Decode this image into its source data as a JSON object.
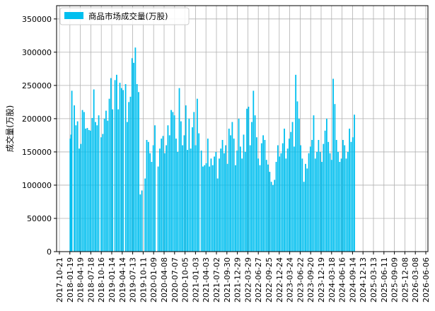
{
  "chart_data": {
    "type": "bar",
    "series": [
      {
        "name": "商品市场成交量(万股)",
        "color": "#00bfef",
        "points": [
          [
            "2018-01-22",
            170000
          ],
          [
            "2018-01-29",
            176000
          ],
          [
            "2018-02-05",
            242000
          ],
          [
            "2018-02-26",
            220000
          ],
          [
            "2018-03-12",
            190000
          ],
          [
            "2018-03-26",
            196000
          ],
          [
            "2018-04-09",
            155000
          ],
          [
            "2018-04-23",
            162000
          ],
          [
            "2018-05-07",
            213000
          ],
          [
            "2018-05-21",
            210000
          ],
          [
            "2018-06-04",
            185000
          ],
          [
            "2018-06-18",
            186000
          ],
          [
            "2018-07-02",
            183000
          ],
          [
            "2018-07-16",
            182000
          ],
          [
            "2018-07-30",
            201000
          ],
          [
            "2018-08-13",
            244000
          ],
          [
            "2018-08-27",
            195000
          ],
          [
            "2018-09-10",
            190000
          ],
          [
            "2018-09-24",
            205000
          ],
          [
            "2018-10-15",
            172000
          ],
          [
            "2018-10-29",
            177000
          ],
          [
            "2018-11-12",
            200000
          ],
          [
            "2018-11-26",
            212000
          ],
          [
            "2018-12-10",
            197000
          ],
          [
            "2018-12-24",
            230000
          ],
          [
            "2019-01-07",
            261000
          ],
          [
            "2019-01-21",
            214000
          ],
          [
            "2019-02-11",
            258000
          ],
          [
            "2019-02-25",
            266000
          ],
          [
            "2019-03-11",
            214000
          ],
          [
            "2019-03-25",
            254000
          ],
          [
            "2019-04-08",
            246000
          ],
          [
            "2019-04-22",
            243000
          ],
          [
            "2019-05-13",
            252000
          ],
          [
            "2019-05-27",
            195000
          ],
          [
            "2019-06-10",
            225000
          ],
          [
            "2019-06-24",
            233000
          ],
          [
            "2019-07-08",
            291000
          ],
          [
            "2019-07-22",
            284000
          ],
          [
            "2019-08-05",
            307000
          ],
          [
            "2019-08-19",
            252000
          ],
          [
            "2019-09-02",
            240000
          ],
          [
            "2019-09-16",
            86000
          ],
          [
            "2019-09-30",
            92000
          ],
          [
            "2019-10-28",
            110000
          ],
          [
            "2019-11-11",
            168000
          ],
          [
            "2019-11-25",
            165000
          ],
          [
            "2019-12-09",
            148000
          ],
          [
            "2019-12-23",
            135000
          ],
          [
            "2020-01-06",
            160000
          ],
          [
            "2020-01-20",
            190000
          ],
          [
            "2020-02-17",
            128000
          ],
          [
            "2020-03-02",
            155000
          ],
          [
            "2020-03-16",
            170000
          ],
          [
            "2020-03-30",
            174000
          ],
          [
            "2020-04-13",
            148000
          ],
          [
            "2020-04-27",
            160000
          ],
          [
            "2020-05-11",
            190000
          ],
          [
            "2020-05-25",
            175000
          ],
          [
            "2020-06-08",
            213000
          ],
          [
            "2020-06-22",
            210000
          ],
          [
            "2020-07-06",
            205000
          ],
          [
            "2020-07-20",
            170000
          ],
          [
            "2020-08-03",
            150000
          ],
          [
            "2020-08-17",
            246000
          ],
          [
            "2020-08-31",
            196000
          ],
          [
            "2020-09-14",
            160000
          ],
          [
            "2020-09-28",
            175000
          ],
          [
            "2020-10-12",
            220000
          ],
          [
            "2020-10-26",
            153000
          ],
          [
            "2020-11-09",
            200000
          ],
          [
            "2020-11-23",
            155000
          ],
          [
            "2020-12-07",
            187000
          ],
          [
            "2020-12-21",
            210000
          ],
          [
            "2021-01-04",
            160000
          ],
          [
            "2021-01-18",
            230000
          ],
          [
            "2021-02-01",
            178000
          ],
          [
            "2021-02-22",
            152000
          ],
          [
            "2021-03-08",
            128000
          ],
          [
            "2021-03-22",
            130000
          ],
          [
            "2021-04-05",
            133000
          ],
          [
            "2021-04-19",
            170000
          ],
          [
            "2021-05-03",
            128000
          ],
          [
            "2021-05-17",
            140000
          ],
          [
            "2021-05-31",
            130000
          ],
          [
            "2021-06-14",
            143000
          ],
          [
            "2021-06-28",
            150000
          ],
          [
            "2021-07-12",
            110000
          ],
          [
            "2021-07-26",
            140000
          ],
          [
            "2021-08-09",
            155000
          ],
          [
            "2021-08-23",
            168000
          ],
          [
            "2021-09-06",
            148000
          ],
          [
            "2021-09-20",
            160000
          ],
          [
            "2021-10-04",
            132000
          ],
          [
            "2021-10-18",
            185000
          ],
          [
            "2021-11-01",
            175000
          ],
          [
            "2021-11-15",
            195000
          ],
          [
            "2021-11-29",
            170000
          ],
          [
            "2021-12-13",
            130000
          ],
          [
            "2021-12-27",
            152000
          ],
          [
            "2022-01-10",
            200000
          ],
          [
            "2022-01-24",
            158000
          ],
          [
            "2022-02-07",
            140000
          ],
          [
            "2022-02-21",
            176000
          ],
          [
            "2022-03-07",
            150000
          ],
          [
            "2022-03-21",
            215000
          ],
          [
            "2022-04-04",
            218000
          ],
          [
            "2022-04-18",
            160000
          ],
          [
            "2022-05-02",
            195000
          ],
          [
            "2022-05-16",
            242000
          ],
          [
            "2022-05-30",
            205000
          ],
          [
            "2022-06-13",
            172000
          ],
          [
            "2022-06-27",
            140000
          ],
          [
            "2022-07-11",
            130000
          ],
          [
            "2022-07-25",
            163000
          ],
          [
            "2022-08-08",
            175000
          ],
          [
            "2022-08-22",
            168000
          ],
          [
            "2022-09-05",
            138000
          ],
          [
            "2022-09-19",
            131000
          ],
          [
            "2022-10-03",
            120000
          ],
          [
            "2022-10-17",
            105000
          ],
          [
            "2022-10-31",
            100000
          ],
          [
            "2022-11-14",
            108000
          ],
          [
            "2022-11-28",
            135000
          ],
          [
            "2022-12-12",
            160000
          ],
          [
            "2022-12-26",
            143000
          ],
          [
            "2023-01-09",
            148000
          ],
          [
            "2023-01-23",
            163000
          ],
          [
            "2023-02-06",
            185000
          ],
          [
            "2023-02-20",
            140000
          ],
          [
            "2023-03-06",
            155000
          ],
          [
            "2023-03-20",
            170000
          ],
          [
            "2023-04-03",
            180000
          ],
          [
            "2023-04-17",
            195000
          ],
          [
            "2023-05-01",
            158000
          ],
          [
            "2023-05-15",
            266000
          ],
          [
            "2023-05-29",
            226000
          ],
          [
            "2023-06-12",
            200000
          ],
          [
            "2023-06-26",
            160000
          ],
          [
            "2023-07-10",
            140000
          ],
          [
            "2023-07-24",
            105000
          ],
          [
            "2023-08-07",
            132000
          ],
          [
            "2023-08-21",
            125000
          ],
          [
            "2023-09-04",
            148000
          ],
          [
            "2023-09-18",
            158000
          ],
          [
            "2023-10-02",
            168000
          ],
          [
            "2023-10-16",
            205000
          ],
          [
            "2023-10-30",
            140000
          ],
          [
            "2023-11-13",
            150000
          ],
          [
            "2023-11-27",
            168000
          ],
          [
            "2023-12-11",
            150000
          ],
          [
            "2023-12-25",
            135000
          ],
          [
            "2024-01-08",
            162000
          ],
          [
            "2024-01-22",
            182000
          ],
          [
            "2024-02-05",
            200000
          ],
          [
            "2024-02-19",
            165000
          ],
          [
            "2024-03-04",
            148000
          ],
          [
            "2024-03-18",
            138000
          ],
          [
            "2024-04-01",
            260000
          ],
          [
            "2024-04-15",
            222000
          ],
          [
            "2024-04-29",
            168000
          ],
          [
            "2024-05-13",
            150000
          ],
          [
            "2024-05-27",
            135000
          ],
          [
            "2024-06-10",
            140000
          ],
          [
            "2024-06-24",
            168000
          ],
          [
            "2024-07-08",
            160000
          ],
          [
            "2024-07-22",
            140000
          ],
          [
            "2024-08-05",
            150000
          ],
          [
            "2024-08-19",
            185000
          ],
          [
            "2024-09-02",
            165000
          ],
          [
            "2024-09-16",
            172000
          ],
          [
            "2024-09-30",
            206000
          ]
        ]
      }
    ],
    "x_ticks": [
      "2017-10-21",
      "2018-01-19",
      "2018-04-19",
      "2018-07-18",
      "2018-10-16",
      "2019-01-14",
      "2019-04-14",
      "2019-07-13",
      "2019-10-11",
      "2020-01-09",
      "2020-04-08",
      "2020-07-07",
      "2020-10-05",
      "2021-01-03",
      "2021-04-03",
      "2021-07-02",
      "2021-09-30",
      "2021-12-29",
      "2022-03-29",
      "2022-06-27",
      "2022-09-25",
      "2022-12-24",
      "2023-03-24",
      "2023-06-22",
      "2023-09-20",
      "2023-12-19",
      "2024-03-18",
      "2024-06-16",
      "2024-09-14",
      "2024-12-13",
      "2025-03-13",
      "2025-06-11",
      "2025-09-09",
      "2025-12-08",
      "2026-03-08",
      "2026-06-06"
    ],
    "ylabel": "成交量(万股)",
    "ylim": [
      0,
      370000
    ],
    "y_ticks": [
      0,
      50000,
      100000,
      150000,
      200000,
      250000,
      300000,
      350000
    ],
    "grid": true,
    "legend_position": "upper-left"
  }
}
